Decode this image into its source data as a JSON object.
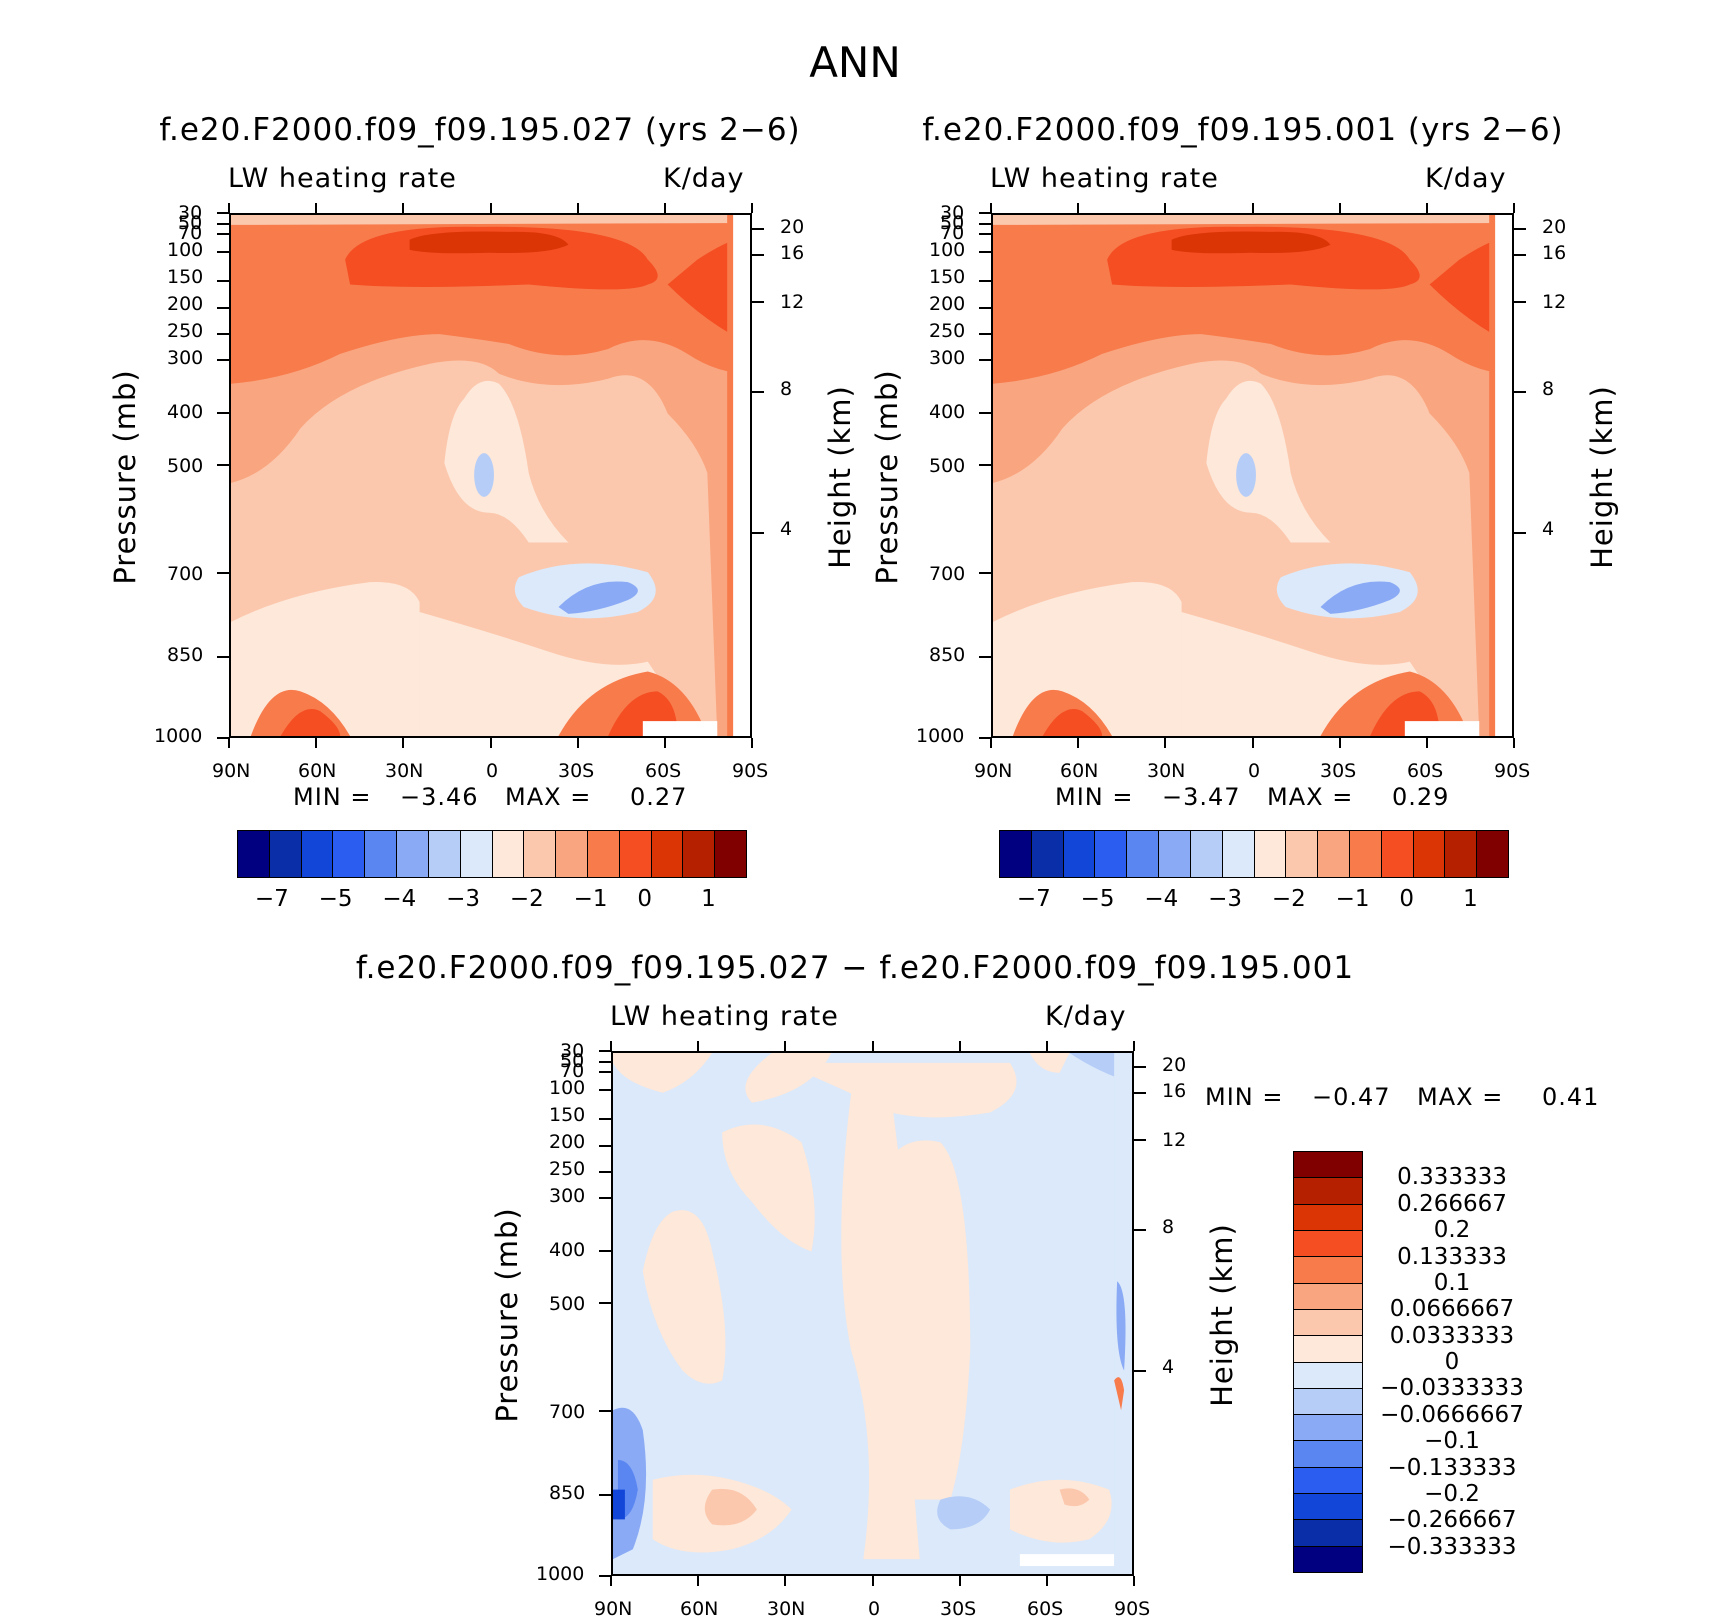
{
  "main_title": "ANN",
  "panels": [
    {
      "id": "top-left",
      "title": "f.e20.F2000.f09_f09.195.027 (yrs 2−6)",
      "varname": "LW heating rate",
      "units": "K/day",
      "ylabel": "Pressure (mb)",
      "ylabel_right": "Height (km)",
      "min_label": "MIN =",
      "min_value": "−3.46",
      "max_label": "MAX =",
      "max_value": "0.27"
    },
    {
      "id": "top-right",
      "title": "f.e20.F2000.f09_f09.195.001 (yrs 2−6)",
      "varname": "LW heating rate",
      "units": "K/day",
      "ylabel": "Pressure (mb)",
      "ylabel_right": "Height (km)",
      "min_label": "MIN =",
      "min_value": "−3.47",
      "max_label": "MAX =",
      "max_value": "0.29"
    },
    {
      "id": "bottom",
      "title": "f.e20.F2000.f09_f09.195.027 − f.e20.F2000.f09_f09.195.001",
      "varname": "LW heating rate",
      "units": "K/day",
      "ylabel": "Pressure (mb)",
      "ylabel_right": "Height (km)",
      "min_label": "MIN =",
      "min_value": "−0.47",
      "max_label": "MAX =",
      "max_value": "0.41"
    }
  ],
  "axes": {
    "x_ticks": [
      "90N",
      "60N",
      "30N",
      "0",
      "30S",
      "60S",
      "90S"
    ],
    "pressure_ticks": [
      "30",
      "50",
      "70",
      "100",
      "150",
      "200",
      "250",
      "300",
      "400",
      "500",
      "700",
      "850",
      "1000"
    ],
    "height_ticks": [
      "20",
      "16",
      "12",
      "8",
      "4"
    ]
  },
  "colorbar_top": {
    "colors": [
      "#000080",
      "#0a2ea8",
      "#1246d8",
      "#2b5df0",
      "#5a86f2",
      "#8aaaf5",
      "#b6cdf7",
      "#dbe9fa",
      "#fde8da",
      "#fcc8ad",
      "#f9a680",
      "#f87b4c",
      "#f44e22",
      "#db3506",
      "#b52000",
      "#800000"
    ],
    "labels": [
      "−7",
      "−5",
      "−4",
      "−3",
      "−2",
      "−1",
      "0",
      "1"
    ]
  },
  "colorbar_diff": {
    "colors": [
      "#000080",
      "#0a2ea8",
      "#1246d8",
      "#2b5df0",
      "#5a86f2",
      "#8aaaf5",
      "#b6cdf7",
      "#dbe9fa",
      "#fde8da",
      "#fcc8ad",
      "#f9a680",
      "#f87b4c",
      "#f44e22",
      "#db3506",
      "#b52000",
      "#800000"
    ],
    "labels": [
      "−0.333333",
      "−0.266667",
      "−0.2",
      "−0.133333",
      "−0.1",
      "−0.0666667",
      "−0.0333333",
      "0",
      "0.0333333",
      "0.0666667",
      "0.1",
      "0.133333",
      "0.2",
      "0.266667",
      "0.333333"
    ]
  },
  "chart_data": [
    {
      "type": "heatmap",
      "title": "f.e20.F2000.f09_f09.195.027 (yrs 2−6)",
      "subtitle": "LW heating rate",
      "units": "K/day",
      "x_ticks": [
        "90N",
        "60N",
        "30N",
        "0",
        "30S",
        "60S",
        "90S"
      ],
      "y_ticks": [
        "30",
        "50",
        "70",
        "100",
        "150",
        "200",
        "250",
        "300",
        "400",
        "500",
        "700",
        "850",
        "1000"
      ],
      "ylabel": "Pressure (mb)",
      "ylabel_right": "Height (km)",
      "xlim": [
        90,
        -90
      ],
      "ylim": [
        30,
        1000
      ],
      "y_scale": "log",
      "min": -3.46,
      "max": 0.27,
      "colorbar_labels": [
        -7,
        -5,
        -4,
        -3,
        -2,
        -1,
        0,
        1
      ]
    },
    {
      "type": "heatmap",
      "title": "f.e20.F2000.f09_f09.195.001 (yrs 2−6)",
      "subtitle": "LW heating rate",
      "units": "K/day",
      "x_ticks": [
        "90N",
        "60N",
        "30N",
        "0",
        "30S",
        "60S",
        "90S"
      ],
      "y_ticks": [
        "30",
        "50",
        "70",
        "100",
        "150",
        "200",
        "250",
        "300",
        "400",
        "500",
        "700",
        "850",
        "1000"
      ],
      "ylabel": "Pressure (mb)",
      "ylabel_right": "Height (km)",
      "xlim": [
        90,
        -90
      ],
      "ylim": [
        30,
        1000
      ],
      "y_scale": "log",
      "min": -3.47,
      "max": 0.29,
      "colorbar_labels": [
        -7,
        -5,
        -4,
        -3,
        -2,
        -1,
        0,
        1
      ]
    },
    {
      "type": "heatmap",
      "title": "f.e20.F2000.f09_f09.195.027 − f.e20.F2000.f09_f09.195.001",
      "subtitle": "LW heating rate",
      "units": "K/day",
      "x_ticks": [
        "90N",
        "60N",
        "30N",
        "0",
        "30S",
        "60S",
        "90S"
      ],
      "y_ticks": [
        "30",
        "50",
        "70",
        "100",
        "150",
        "200",
        "250",
        "300",
        "400",
        "500",
        "700",
        "850",
        "1000"
      ],
      "ylabel": "Pressure (mb)",
      "ylabel_right": "Height (km)",
      "xlim": [
        90,
        -90
      ],
      "ylim": [
        30,
        1000
      ],
      "y_scale": "log",
      "min": -0.47,
      "max": 0.41,
      "colorbar_labels": [
        -0.333333,
        -0.266667,
        -0.2,
        -0.133333,
        -0.1,
        -0.0666667,
        -0.0333333,
        0,
        0.0333333,
        0.0666667,
        0.1,
        0.133333,
        0.2,
        0.266667,
        0.333333
      ]
    }
  ]
}
